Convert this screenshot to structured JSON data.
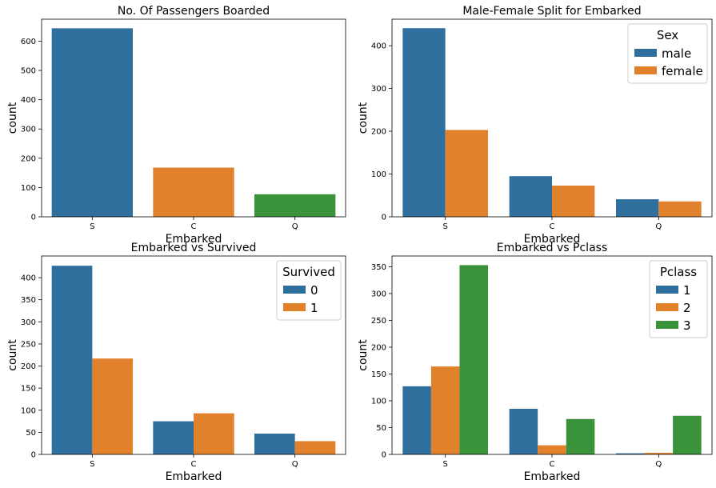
{
  "colors": {
    "blue": "#2e6f9e",
    "orange": "#e1812c",
    "green": "#3a923a",
    "axis": "#000000",
    "background": "#ffffff"
  },
  "chart_data": [
    {
      "type": "bar",
      "title": "No. Of Passengers Boarded",
      "xlabel": "Embarked",
      "ylabel": "count",
      "categories": [
        "S",
        "C",
        "Q"
      ],
      "ylim": [
        0,
        675
      ],
      "yticks": [
        0,
        100,
        200,
        300,
        400,
        500,
        600
      ],
      "grid": false,
      "legend": null,
      "series": [
        {
          "values": [
            644,
            168,
            77
          ],
          "colors": [
            "#2e6f9e",
            "#e1812c",
            "#3a923a"
          ]
        }
      ]
    },
    {
      "type": "bar",
      "title": "Male-Female Split for Embarked",
      "xlabel": "Embarked",
      "ylabel": "count",
      "categories": [
        "S",
        "C",
        "Q"
      ],
      "ylim": [
        0,
        462
      ],
      "yticks": [
        0,
        100,
        200,
        300,
        400
      ],
      "grid": false,
      "legend": {
        "title": "Sex",
        "placement": "top-right"
      },
      "series": [
        {
          "name": "male",
          "color": "#2e6f9e",
          "values": [
            441,
            95,
            41
          ]
        },
        {
          "name": "female",
          "color": "#e1812c",
          "values": [
            203,
            73,
            36
          ]
        }
      ]
    },
    {
      "type": "bar",
      "title": "Embarked vs Survived",
      "xlabel": "Embarked",
      "ylabel": "count",
      "categories": [
        "S",
        "C",
        "Q"
      ],
      "ylim": [
        0,
        449
      ],
      "yticks": [
        0,
        50,
        100,
        150,
        200,
        250,
        300,
        350,
        400
      ],
      "grid": false,
      "legend": {
        "title": "Survived",
        "placement": "top-right"
      },
      "series": [
        {
          "name": "0",
          "color": "#2e6f9e",
          "values": [
            427,
            75,
            47
          ]
        },
        {
          "name": "1",
          "color": "#e1812c",
          "values": [
            217,
            93,
            30
          ]
        }
      ]
    },
    {
      "type": "bar",
      "title": "Embarked vs Pclass",
      "xlabel": "Embarked",
      "ylabel": "count",
      "categories": [
        "S",
        "C",
        "Q"
      ],
      "ylim": [
        0,
        370
      ],
      "yticks": [
        0,
        50,
        100,
        150,
        200,
        250,
        300,
        350
      ],
      "grid": false,
      "legend": {
        "title": "Pclass",
        "placement": "top-right"
      },
      "series": [
        {
          "name": "1",
          "color": "#2e6f9e",
          "values": [
            127,
            85,
            2
          ]
        },
        {
          "name": "2",
          "color": "#e1812c",
          "values": [
            164,
            17,
            3
          ]
        },
        {
          "name": "3",
          "color": "#3a923a",
          "values": [
            353,
            66,
            72
          ]
        }
      ]
    }
  ]
}
